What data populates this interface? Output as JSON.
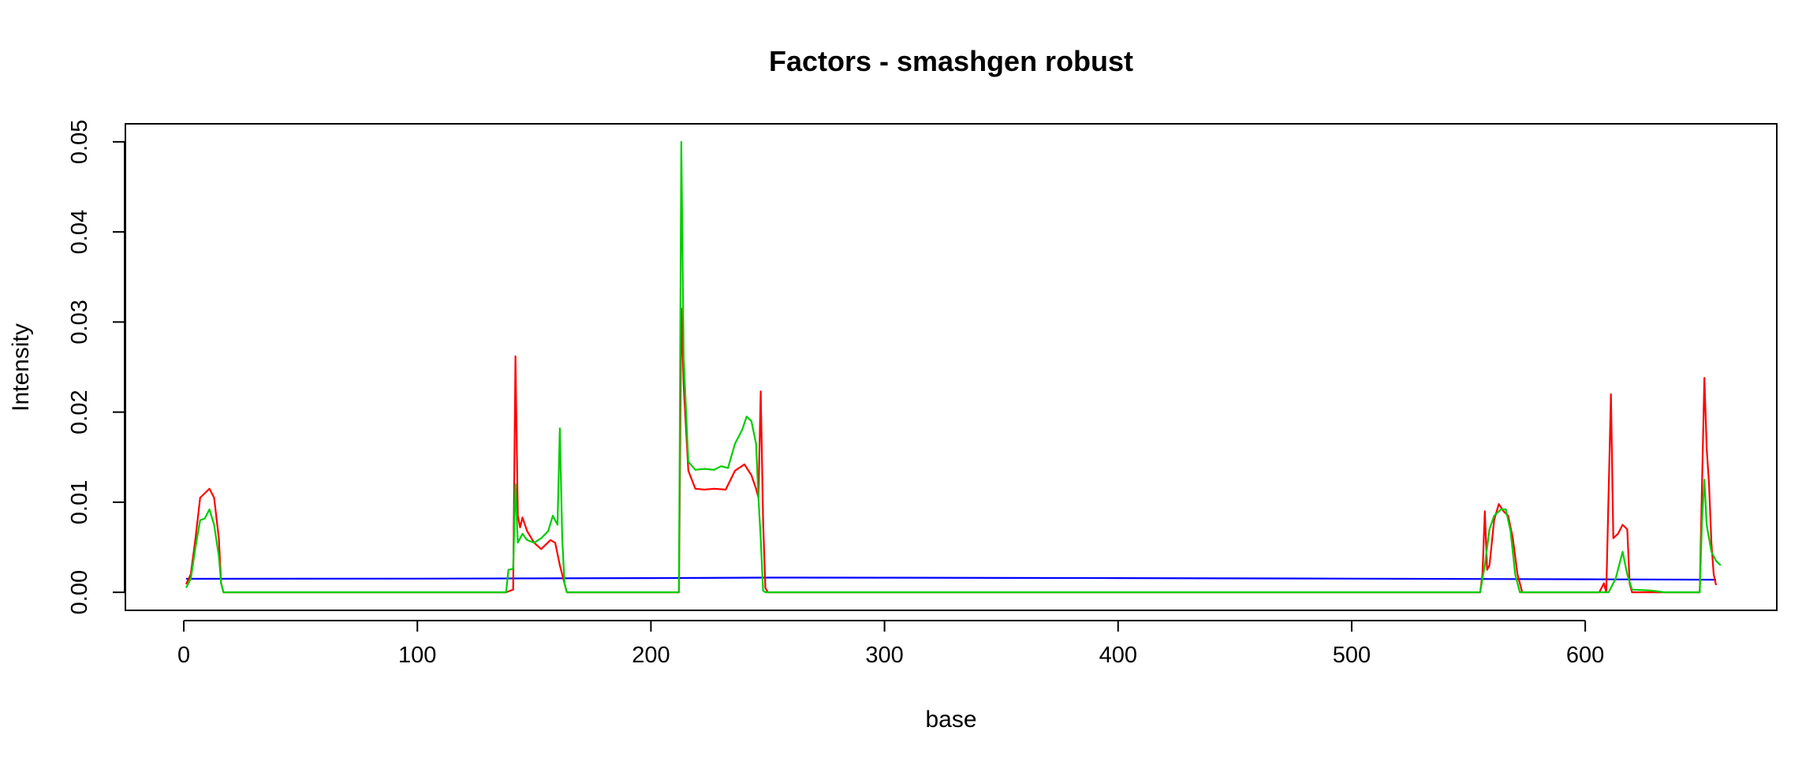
{
  "chart_data": {
    "type": "line",
    "title": "Factors - smashgen robust",
    "xlabel": "base",
    "ylabel": "Intensity",
    "xlim": [
      -25,
      682
    ],
    "ylim": [
      -0.002,
      0.052
    ],
    "x_ticks": [
      0,
      100,
      200,
      300,
      400,
      500,
      600
    ],
    "x_tick_labels": [
      "0",
      "100",
      "200",
      "300",
      "400",
      "500",
      "600"
    ],
    "y_ticks": [
      0,
      0.01,
      0.02,
      0.03,
      0.04,
      0.05
    ],
    "y_tick_labels": [
      "0.00",
      "0.01",
      "0.02",
      "0.03",
      "0.04",
      "0.05"
    ],
    "grid": false,
    "legend": "none",
    "series": [
      {
        "color": "#0000ff",
        "points": [
          [
            1,
            0.0015
          ],
          [
            100,
            0.00152
          ],
          [
            200,
            0.00158
          ],
          [
            250,
            0.00163
          ],
          [
            300,
            0.00162
          ],
          [
            400,
            0.00158
          ],
          [
            500,
            0.00152
          ],
          [
            600,
            0.00145
          ],
          [
            656,
            0.0014
          ]
        ]
      },
      {
        "color": "#ff0000",
        "points": [
          [
            1,
            0.0009
          ],
          [
            3,
            0.002
          ],
          [
            5,
            0.006
          ],
          [
            7,
            0.0105
          ],
          [
            9,
            0.011
          ],
          [
            11,
            0.0115
          ],
          [
            13,
            0.0105
          ],
          [
            15,
            0.006
          ],
          [
            16,
            0.001
          ],
          [
            17,
            0
          ],
          [
            138,
            0
          ],
          [
            140,
            0.0002
          ],
          [
            141,
            0.0003
          ],
          [
            142,
            0.0262
          ],
          [
            143,
            0.0085
          ],
          [
            144,
            0.0072
          ],
          [
            145,
            0.0083
          ],
          [
            147,
            0.0068
          ],
          [
            150,
            0.0055
          ],
          [
            153,
            0.0048
          ],
          [
            157,
            0.0058
          ],
          [
            159,
            0.0055
          ],
          [
            161,
            0.003
          ],
          [
            163,
            0.001
          ],
          [
            164,
            0
          ],
          [
            212,
            0
          ],
          [
            213,
            0.0315
          ],
          [
            214,
            0.023
          ],
          [
            216,
            0.0135
          ],
          [
            219,
            0.0115
          ],
          [
            223,
            0.0114
          ],
          [
            227,
            0.0115
          ],
          [
            232,
            0.0114
          ],
          [
            236,
            0.0135
          ],
          [
            240,
            0.0142
          ],
          [
            243,
            0.013
          ],
          [
            245,
            0.0115
          ],
          [
            246,
            0.0105
          ],
          [
            247,
            0.0223
          ],
          [
            248,
            0.008
          ],
          [
            249,
            0.0005
          ],
          [
            250,
            0
          ],
          [
            555,
            0
          ],
          [
            556,
            0.002
          ],
          [
            557,
            0.009
          ],
          [
            558,
            0.0025
          ],
          [
            559,
            0.003
          ],
          [
            561,
            0.008
          ],
          [
            563,
            0.0098
          ],
          [
            565,
            0.009
          ],
          [
            567,
            0.0085
          ],
          [
            569,
            0.006
          ],
          [
            571,
            0.002
          ],
          [
            573,
            0
          ],
          [
            606,
            0
          ],
          [
            608,
            0.001
          ],
          [
            609,
            0
          ],
          [
            611,
            0.022
          ],
          [
            612,
            0.006
          ],
          [
            614,
            0.0065
          ],
          [
            615,
            0.007
          ],
          [
            616,
            0.0075
          ],
          [
            618,
            0.007
          ],
          [
            619,
            0.001
          ],
          [
            620,
            0
          ],
          [
            649,
            0
          ],
          [
            650,
            0.012
          ],
          [
            651,
            0.0238
          ],
          [
            652,
            0.016
          ],
          [
            653,
            0.012
          ],
          [
            654,
            0.0055
          ],
          [
            655,
            0.002
          ],
          [
            656,
            0.0008
          ]
        ]
      },
      {
        "color": "#00cd00",
        "points": [
          [
            1,
            0.0005
          ],
          [
            3,
            0.0015
          ],
          [
            5,
            0.005
          ],
          [
            7,
            0.008
          ],
          [
            9,
            0.0082
          ],
          [
            11,
            0.0092
          ],
          [
            13,
            0.0075
          ],
          [
            15,
            0.004
          ],
          [
            16,
            0.001
          ],
          [
            17,
            0
          ],
          [
            138,
            0
          ],
          [
            139,
            0.0025
          ],
          [
            141,
            0.0026
          ],
          [
            142,
            0.012
          ],
          [
            143,
            0.0055
          ],
          [
            145,
            0.0065
          ],
          [
            147,
            0.0058
          ],
          [
            150,
            0.0055
          ],
          [
            153,
            0.006
          ],
          [
            156,
            0.0068
          ],
          [
            158,
            0.0085
          ],
          [
            160,
            0.0075
          ],
          [
            161,
            0.0182
          ],
          [
            162,
            0.006
          ],
          [
            163,
            0.001
          ],
          [
            164,
            0
          ],
          [
            212,
            0
          ],
          [
            213,
            0.05
          ],
          [
            214,
            0.026
          ],
          [
            216,
            0.0145
          ],
          [
            219,
            0.0136
          ],
          [
            223,
            0.0137
          ],
          [
            227,
            0.0136
          ],
          [
            230,
            0.014
          ],
          [
            233,
            0.0138
          ],
          [
            236,
            0.0165
          ],
          [
            239,
            0.018
          ],
          [
            241,
            0.0195
          ],
          [
            243,
            0.019
          ],
          [
            245,
            0.0165
          ],
          [
            246,
            0.0105
          ],
          [
            247,
            0.006
          ],
          [
            248,
            0.0002
          ],
          [
            249,
            0
          ],
          [
            555,
            0
          ],
          [
            556,
            0.0015
          ],
          [
            557,
            0.003
          ],
          [
            559,
            0.007
          ],
          [
            561,
            0.0085
          ],
          [
            564,
            0.0092
          ],
          [
            566,
            0.0092
          ],
          [
            568,
            0.0068
          ],
          [
            570,
            0.002
          ],
          [
            572,
            0
          ],
          [
            610,
            0
          ],
          [
            613,
            0.0015
          ],
          [
            615,
            0.0035
          ],
          [
            616,
            0.0045
          ],
          [
            618,
            0.002
          ],
          [
            620,
            0.0003
          ],
          [
            628,
            0.0002
          ],
          [
            634,
            0
          ],
          [
            649,
            0
          ],
          [
            650,
            0.008
          ],
          [
            651,
            0.0125
          ],
          [
            652,
            0.0075
          ],
          [
            654,
            0.0045
          ],
          [
            656,
            0.0035
          ],
          [
            658,
            0.003
          ]
        ]
      }
    ]
  }
}
